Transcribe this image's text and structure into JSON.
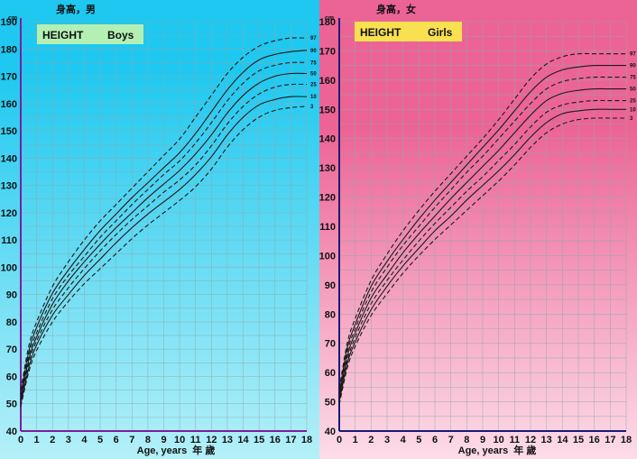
{
  "chart_data": [
    {
      "type": "line",
      "title_cn": "身高，男",
      "box_label": "HEIGHT",
      "sex_label": "Boys",
      "unit": "cm",
      "xlabel": "Age, years",
      "xlabel_cn": "年 歲",
      "xlim": [
        0,
        18
      ],
      "ylim": [
        40,
        190
      ],
      "x_ticks": [
        0,
        1,
        2,
        3,
        4,
        5,
        6,
        7,
        8,
        9,
        10,
        11,
        12,
        13,
        14,
        15,
        16,
        17,
        18
      ],
      "y_ticks": [
        40,
        50,
        60,
        70,
        80,
        90,
        100,
        110,
        120,
        130,
        140,
        150,
        160,
        170,
        180,
        190
      ],
      "grid": true,
      "background": [
        "#1ec8f0",
        "#b4f0f8"
      ],
      "box_color": "#b4f0b4",
      "x": [
        0,
        0.5,
        1,
        2,
        3,
        4,
        5,
        6,
        7,
        8,
        9,
        10,
        11,
        12,
        13,
        14,
        15,
        16,
        17,
        18
      ],
      "series": [
        {
          "name": "97",
          "dash": true,
          "values": [
            55,
            71,
            80,
            93,
            102,
            110,
            117,
            123,
            129,
            135,
            141,
            147,
            155,
            163,
            171,
            177,
            181,
            183,
            184,
            184
          ]
        },
        {
          "name": "90",
          "dash": false,
          "values": [
            53.5,
            69,
            78,
            90.5,
            99,
            106.5,
            113.5,
            119.5,
            125.5,
            131,
            136.5,
            142,
            149,
            157,
            165,
            171.5,
            176,
            178,
            179,
            179.5
          ]
        },
        {
          "name": "75",
          "dash": true,
          "values": [
            52.5,
            67.5,
            76,
            88.5,
            97,
            104,
            111,
            117,
            123,
            128.5,
            134,
            139,
            145.5,
            153,
            161,
            167.5,
            172,
            174,
            175,
            175
          ]
        },
        {
          "name": "50",
          "dash": false,
          "values": [
            51.5,
            66,
            74.5,
            86.5,
            95,
            102,
            108.5,
            114.5,
            120,
            125.5,
            130.5,
            135.5,
            141.5,
            148.5,
            156.5,
            163,
            167.5,
            170,
            171,
            171
          ]
        },
        {
          "name": "25",
          "dash": true,
          "values": [
            50.5,
            64.5,
            73,
            84.5,
            92.5,
            99.5,
            106,
            112,
            117.5,
            122.5,
            127.5,
            132,
            137.5,
            144.5,
            152.5,
            159,
            163.5,
            166,
            167,
            167
          ]
        },
        {
          "name": "10",
          "dash": false,
          "values": [
            50,
            63,
            71.5,
            82.5,
            90,
            97,
            103,
            109,
            114.5,
            119.5,
            124,
            128.5,
            134,
            140.5,
            148.5,
            155,
            159.5,
            161.5,
            162.5,
            162.5
          ]
        },
        {
          "name": "3",
          "dash": true,
          "values": [
            49,
            61.5,
            69.5,
            80,
            87.5,
            94,
            99.5,
            105,
            110.5,
            115.5,
            120,
            124.5,
            129.5,
            136,
            144,
            150.5,
            155,
            157.5,
            158.5,
            159
          ]
        }
      ]
    },
    {
      "type": "line",
      "title_cn": "身高，女",
      "box_label": "HEIGHT",
      "sex_label": "Girls",
      "unit": "cm",
      "xlabel": "Age, years",
      "xlabel_cn": "年 歲",
      "xlim": [
        0,
        18
      ],
      "ylim": [
        40,
        180
      ],
      "x_ticks": [
        0,
        1,
        2,
        3,
        4,
        5,
        6,
        7,
        8,
        9,
        10,
        11,
        12,
        13,
        14,
        15,
        16,
        17,
        18
      ],
      "y_ticks": [
        40,
        50,
        60,
        70,
        80,
        90,
        100,
        110,
        120,
        130,
        140,
        150,
        160,
        170,
        180
      ],
      "grid": true,
      "background": [
        "#ec6496",
        "#fcdce8"
      ],
      "box_color": "#f8e050",
      "x": [
        0,
        0.5,
        1,
        2,
        3,
        4,
        5,
        6,
        7,
        8,
        9,
        10,
        11,
        12,
        13,
        14,
        15,
        16,
        17,
        18
      ],
      "series": [
        {
          "name": "97",
          "dash": true,
          "values": [
            54.5,
            70,
            78.5,
            91.5,
            100.5,
            108.5,
            115.5,
            122,
            128,
            134,
            140,
            146.5,
            153.5,
            160.5,
            165.5,
            168,
            169,
            169,
            169,
            169
          ]
        },
        {
          "name": "90",
          "dash": false,
          "values": [
            53,
            68.5,
            76.5,
            89.5,
            98,
            105.5,
            112.5,
            119,
            125,
            131,
            137,
            143,
            149.5,
            156,
            161,
            163.5,
            164.5,
            165,
            165,
            165
          ]
        },
        {
          "name": "75",
          "dash": true,
          "values": [
            52.5,
            67,
            75,
            87.5,
            96,
            103.5,
            110,
            116.5,
            122.5,
            128.5,
            134,
            140,
            146,
            152,
            157,
            159.5,
            160.5,
            161,
            161,
            161
          ]
        },
        {
          "name": "50",
          "dash": false,
          "values": [
            51.5,
            65.5,
            73.5,
            85.5,
            93.5,
            101,
            107.5,
            113.5,
            119.5,
            125,
            130.5,
            136,
            142,
            148,
            153,
            155.5,
            156.5,
            157,
            157,
            157
          ]
        },
        {
          "name": "25",
          "dash": true,
          "values": [
            50.5,
            64,
            72,
            83.5,
            91.5,
            98.5,
            105,
            111,
            116.5,
            122,
            127,
            132.5,
            138,
            144,
            149,
            151.5,
            152.5,
            153,
            153,
            153
          ]
        },
        {
          "name": "10",
          "dash": false,
          "values": [
            50,
            63,
            70.5,
            81.5,
            89.5,
            96.5,
            102.5,
            108.5,
            113.5,
            119,
            124,
            129,
            134.5,
            140.5,
            145.5,
            148.5,
            149.5,
            150,
            150,
            150
          ]
        },
        {
          "name": "3",
          "dash": true,
          "values": [
            49,
            61.5,
            69,
            79.5,
            87,
            94,
            100,
            105.5,
            110.5,
            115.5,
            120.5,
            125.5,
            131,
            137,
            142,
            145,
            146.5,
            147,
            147,
            147
          ]
        }
      ]
    }
  ]
}
